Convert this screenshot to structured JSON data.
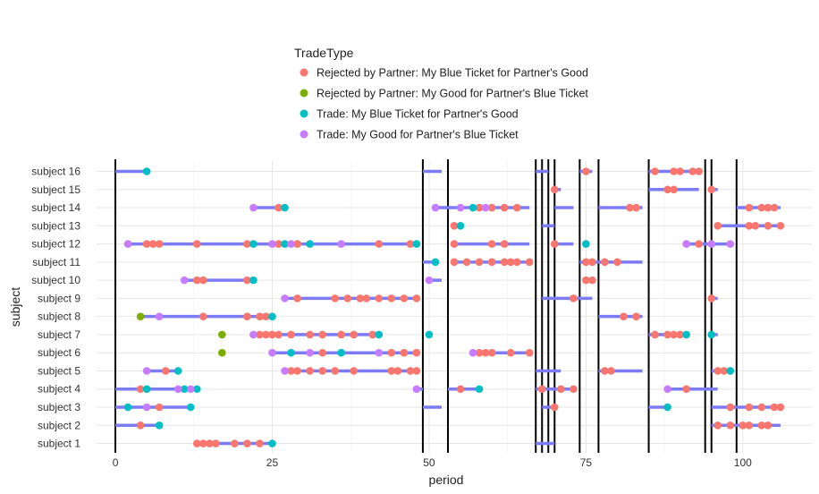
{
  "chart_data": {
    "type": "scatter",
    "xlabel": "period",
    "ylabel": "subject",
    "xlim": [
      -3,
      111
    ],
    "x_ticks": [
      0,
      25,
      50,
      75,
      100
    ],
    "grid": true,
    "legend_title": "TradeType",
    "legend_position": "top",
    "categories": [
      "subject 1",
      "subject 2",
      "subject 3",
      "subject 4",
      "subject 5",
      "subject 6",
      "subject 7",
      "subject 8",
      "subject 9",
      "subject 10",
      "subject 11",
      "subject 12",
      "subject 13",
      "subject 14",
      "subject 15",
      "subject 16"
    ],
    "series": [
      {
        "name": "Rejected by Partner: My Blue Ticket for Partner's Good",
        "color": "#F8766D"
      },
      {
        "name": "Rejected by Partner: My Good for Partner's Blue Ticket",
        "color": "#7CAE00"
      },
      {
        "name": "Trade: My Blue Ticket for Partner's Good",
        "color": "#00BFC4"
      },
      {
        "name": "Trade: My Good for Partner's Blue Ticket",
        "color": "#C77CFF"
      }
    ],
    "vlines": [
      0,
      49,
      53,
      67,
      68,
      69,
      70,
      74,
      77,
      85,
      94,
      95,
      99
    ],
    "segment_color": "#7B7BF5",
    "segments": [
      {
        "subject": 1,
        "x": [
          13,
          25
        ]
      },
      {
        "subject": 1,
        "x": [
          67,
          70
        ]
      },
      {
        "subject": 2,
        "x": [
          0,
          7
        ]
      },
      {
        "subject": 2,
        "x": [
          95,
          106
        ]
      },
      {
        "subject": 3,
        "x": [
          0,
          12
        ]
      },
      {
        "subject": 3,
        "x": [
          49,
          52
        ]
      },
      {
        "subject": 3,
        "x": [
          68,
          70
        ]
      },
      {
        "subject": 3,
        "x": [
          85,
          88
        ]
      },
      {
        "subject": 3,
        "x": [
          95,
          106
        ]
      },
      {
        "subject": 4,
        "x": [
          0,
          13
        ]
      },
      {
        "subject": 4,
        "x": [
          49,
          48
        ]
      },
      {
        "subject": 4,
        "x": [
          53,
          58
        ]
      },
      {
        "subject": 4,
        "x": [
          67,
          73
        ]
      },
      {
        "subject": 4,
        "x": [
          88,
          96
        ]
      },
      {
        "subject": 5,
        "x": [
          5,
          10
        ]
      },
      {
        "subject": 5,
        "x": [
          27,
          48
        ]
      },
      {
        "subject": 5,
        "x": [
          67,
          71
        ]
      },
      {
        "subject": 5,
        "x": [
          77,
          84
        ]
      },
      {
        "subject": 5,
        "x": [
          95,
          98
        ]
      },
      {
        "subject": 6,
        "x": [
          17,
          17
        ]
      },
      {
        "subject": 6,
        "x": [
          25,
          48
        ]
      },
      {
        "subject": 6,
        "x": [
          57,
          66
        ]
      },
      {
        "subject": 7,
        "x": [
          17,
          17
        ]
      },
      {
        "subject": 7,
        "x": [
          22,
          42
        ]
      },
      {
        "subject": 7,
        "x": [
          50,
          50
        ]
      },
      {
        "subject": 7,
        "x": [
          85,
          91
        ]
      },
      {
        "subject": 7,
        "x": [
          95,
          96
        ]
      },
      {
        "subject": 8,
        "x": [
          4,
          25
        ]
      },
      {
        "subject": 8,
        "x": [
          77,
          84
        ]
      },
      {
        "subject": 9,
        "x": [
          27,
          48
        ]
      },
      {
        "subject": 9,
        "x": [
          68,
          76
        ]
      },
      {
        "subject": 9,
        "x": [
          95,
          96
        ]
      },
      {
        "subject": 10,
        "x": [
          11,
          22
        ]
      },
      {
        "subject": 10,
        "x": [
          50,
          52
        ]
      },
      {
        "subject": 10,
        "x": [
          75,
          76
        ]
      },
      {
        "subject": 11,
        "x": [
          49,
          51
        ]
      },
      {
        "subject": 11,
        "x": [
          54,
          66
        ]
      },
      {
        "subject": 11,
        "x": [
          74,
          84
        ]
      },
      {
        "subject": 12,
        "x": [
          2,
          48
        ]
      },
      {
        "subject": 12,
        "x": [
          54,
          66
        ]
      },
      {
        "subject": 12,
        "x": [
          70,
          73
        ]
      },
      {
        "subject": 12,
        "x": [
          91,
          98
        ]
      },
      {
        "subject": 13,
        "x": [
          54,
          55
        ]
      },
      {
        "subject": 13,
        "x": [
          68,
          70
        ]
      },
      {
        "subject": 13,
        "x": [
          96,
          106
        ]
      },
      {
        "subject": 14,
        "x": [
          22,
          27
        ]
      },
      {
        "subject": 14,
        "x": [
          51,
          66
        ]
      },
      {
        "subject": 14,
        "x": [
          70,
          73
        ]
      },
      {
        "subject": 14,
        "x": [
          77,
          84
        ]
      },
      {
        "subject": 14,
        "x": [
          99,
          106
        ]
      },
      {
        "subject": 15,
        "x": [
          70,
          71
        ]
      },
      {
        "subject": 15,
        "x": [
          85,
          93
        ]
      },
      {
        "subject": 15,
        "x": [
          95,
          96
        ]
      },
      {
        "subject": 16,
        "x": [
          0,
          5
        ]
      },
      {
        "subject": 16,
        "x": [
          49,
          52
        ]
      },
      {
        "subject": 16,
        "x": [
          67,
          69
        ]
      },
      {
        "subject": 16,
        "x": [
          74,
          76
        ]
      },
      {
        "subject": 16,
        "x": [
          85,
          93
        ]
      }
    ],
    "points": [
      {
        "subject": 1,
        "series": 0,
        "x": [
          13,
          14,
          15,
          16,
          19,
          21,
          23
        ]
      },
      {
        "subject": 1,
        "series": 2,
        "x": [
          25
        ]
      },
      {
        "subject": 2,
        "series": 0,
        "x": [
          4,
          96,
          98,
          100,
          101,
          103,
          104
        ]
      },
      {
        "subject": 2,
        "series": 2,
        "x": [
          7
        ]
      },
      {
        "subject": 3,
        "series": 0,
        "x": [
          7,
          70,
          98,
          101,
          103,
          105,
          106
        ]
      },
      {
        "subject": 3,
        "series": 2,
        "x": [
          2,
          12,
          88
        ]
      },
      {
        "subject": 3,
        "series": 3,
        "x": [
          5
        ]
      },
      {
        "subject": 4,
        "series": 0,
        "x": [
          4,
          55,
          68,
          71,
          73,
          91
        ]
      },
      {
        "subject": 4,
        "series": 2,
        "x": [
          5,
          11,
          13,
          58
        ]
      },
      {
        "subject": 4,
        "series": 3,
        "x": [
          10,
          12,
          48,
          88
        ]
      },
      {
        "subject": 5,
        "series": 0,
        "x": [
          8,
          28,
          29,
          31,
          33,
          35,
          38,
          44,
          45,
          47,
          48,
          78,
          79,
          96,
          97
        ]
      },
      {
        "subject": 5,
        "series": 2,
        "x": [
          10,
          98
        ]
      },
      {
        "subject": 5,
        "series": 3,
        "x": [
          5,
          27
        ]
      },
      {
        "subject": 6,
        "series": 0,
        "x": [
          33,
          44,
          46,
          48,
          58,
          59,
          60,
          63,
          66
        ]
      },
      {
        "subject": 6,
        "series": 1,
        "x": [
          17
        ]
      },
      {
        "subject": 6,
        "series": 2,
        "x": [
          28,
          36
        ]
      },
      {
        "subject": 6,
        "series": 3,
        "x": [
          25,
          31,
          42,
          57
        ]
      },
      {
        "subject": 7,
        "series": 0,
        "x": [
          23,
          24,
          25,
          26,
          28,
          31,
          33,
          36,
          38,
          41,
          86,
          88,
          89,
          90
        ]
      },
      {
        "subject": 7,
        "series": 1,
        "x": [
          17
        ]
      },
      {
        "subject": 7,
        "series": 2,
        "x": [
          42,
          50,
          91,
          95
        ]
      },
      {
        "subject": 7,
        "series": 3,
        "x": [
          22
        ]
      },
      {
        "subject": 8,
        "series": 0,
        "x": [
          14,
          21,
          23,
          24,
          81,
          83
        ]
      },
      {
        "subject": 8,
        "series": 1,
        "x": [
          4
        ]
      },
      {
        "subject": 8,
        "series": 2,
        "x": [
          25
        ]
      },
      {
        "subject": 8,
        "series": 3,
        "x": [
          7
        ]
      },
      {
        "subject": 9,
        "series": 0,
        "x": [
          29,
          35,
          37,
          39,
          40,
          42,
          44,
          46,
          48,
          73,
          95
        ]
      },
      {
        "subject": 9,
        "series": 3,
        "x": [
          27
        ]
      },
      {
        "subject": 10,
        "series": 0,
        "x": [
          13,
          14,
          21,
          75,
          76
        ]
      },
      {
        "subject": 10,
        "series": 2,
        "x": [
          22
        ]
      },
      {
        "subject": 10,
        "series": 3,
        "x": [
          11,
          50
        ]
      },
      {
        "subject": 11,
        "series": 0,
        "x": [
          54,
          56,
          58,
          60,
          62,
          63,
          64,
          66,
          75,
          76,
          78,
          80
        ]
      },
      {
        "subject": 11,
        "series": 2,
        "x": [
          51
        ]
      },
      {
        "subject": 12,
        "series": 0,
        "x": [
          5,
          6,
          7,
          13,
          21,
          26,
          29,
          42,
          47,
          54,
          60,
          62,
          70,
          93
        ]
      },
      {
        "subject": 12,
        "series": 2,
        "x": [
          22,
          27,
          31,
          48,
          75
        ]
      },
      {
        "subject": 12,
        "series": 3,
        "x": [
          2,
          25,
          28,
          36,
          91,
          95,
          98
        ]
      },
      {
        "subject": 13,
        "series": 0,
        "x": [
          54,
          96,
          101,
          102,
          104,
          106
        ]
      },
      {
        "subject": 13,
        "series": 2,
        "x": [
          55
        ]
      },
      {
        "subject": 14,
        "series": 0,
        "x": [
          26,
          58,
          60,
          62,
          64,
          82,
          83,
          101,
          103,
          104,
          105
        ]
      },
      {
        "subject": 14,
        "series": 2,
        "x": [
          27,
          57
        ]
      },
      {
        "subject": 14,
        "series": 3,
        "x": [
          22,
          51,
          55,
          59
        ]
      },
      {
        "subject": 15,
        "series": 0,
        "x": [
          70,
          88,
          89,
          95
        ]
      },
      {
        "subject": 16,
        "series": 0,
        "x": [
          75,
          86,
          89,
          90,
          92,
          93
        ]
      },
      {
        "subject": 16,
        "series": 2,
        "x": [
          5
        ]
      }
    ]
  }
}
